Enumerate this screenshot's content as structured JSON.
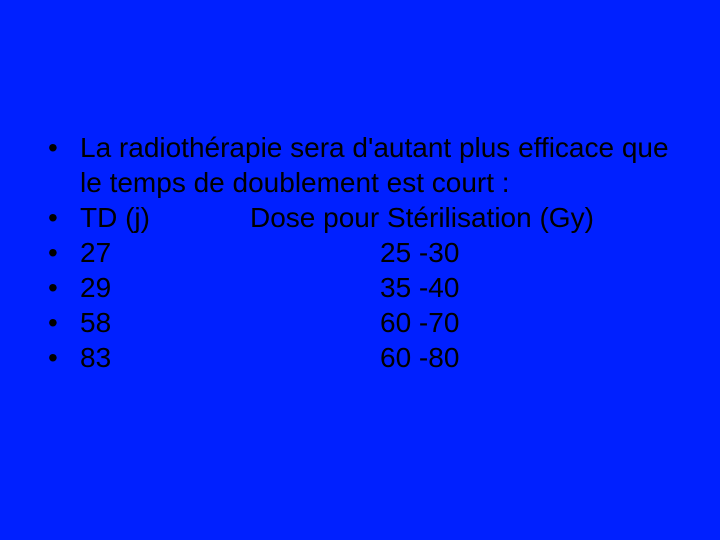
{
  "slide": {
    "background_color": "#0020ff",
    "text_color": "#000000",
    "font_family": "Arial",
    "font_size_pt": 21,
    "intro_text": "La radiothérapie sera d'autant plus efficace que le temps de doublement est court :",
    "header": {
      "left": "TD (j)",
      "right": "Dose pour Stérilisation (Gy)"
    },
    "rows": [
      {
        "td": "27",
        "dose": "25 -30"
      },
      {
        "td": "29",
        "dose": "35 -40"
      },
      {
        "td": "58",
        "dose": "60 -70"
      },
      {
        "td": "83",
        "dose": "60 -80"
      }
    ]
  }
}
